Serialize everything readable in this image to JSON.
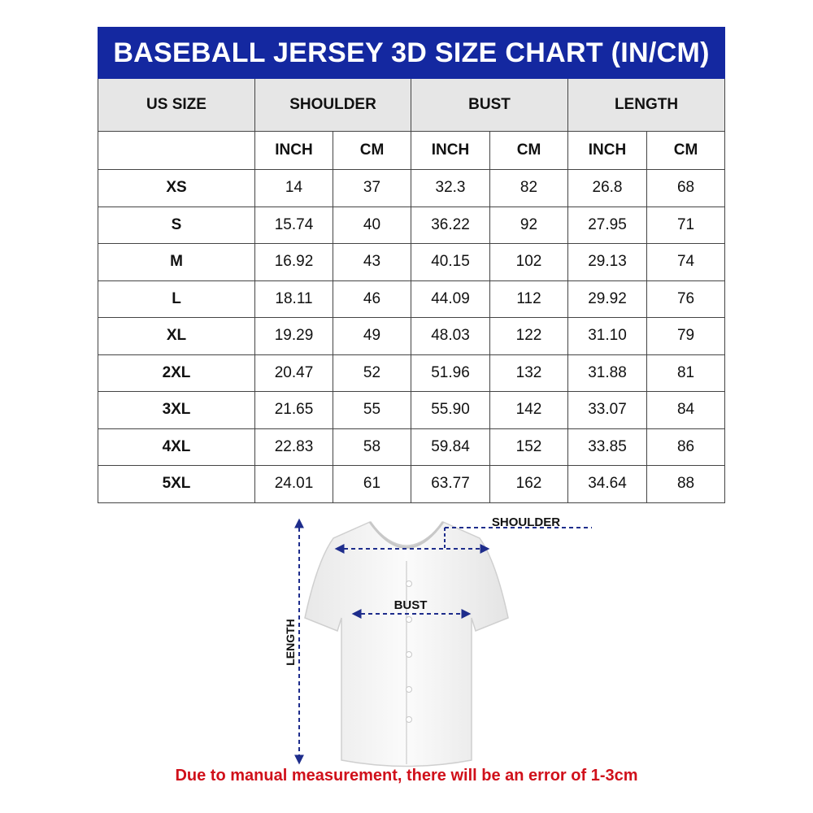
{
  "title": "BASEBALL JERSEY 3D SIZE CHART (IN/CM)",
  "headers": {
    "size": "US SIZE",
    "shoulder": "SHOULDER",
    "bust": "BUST",
    "length": "LENGTH"
  },
  "units": [
    "INCH",
    "CM",
    "INCH",
    "CM",
    "INCH",
    "CM"
  ],
  "rows": [
    [
      "XS",
      "14",
      "37",
      "32.3",
      "82",
      "26.8",
      "68"
    ],
    [
      "S",
      "15.74",
      "40",
      "36.22",
      "92",
      "27.95",
      "71"
    ],
    [
      "M",
      "16.92",
      "43",
      "40.15",
      "102",
      "29.13",
      "74"
    ],
    [
      "L",
      "18.11",
      "46",
      "44.09",
      "112",
      "29.92",
      "76"
    ],
    [
      "XL",
      "19.29",
      "49",
      "48.03",
      "122",
      "31.10",
      "79"
    ],
    [
      "2XL",
      "20.47",
      "52",
      "51.96",
      "132",
      "31.88",
      "81"
    ],
    [
      "3XL",
      "21.65",
      "55",
      "55.90",
      "142",
      "33.07",
      "84"
    ],
    [
      "4XL",
      "22.83",
      "58",
      "59.84",
      "152",
      "33.85",
      "86"
    ],
    [
      "5XL",
      "24.01",
      "61",
      "63.77",
      "162",
      "34.64",
      "88"
    ]
  ],
  "diagram": {
    "shoulder_label": "SHOULDER",
    "bust_label": "BUST",
    "length_label": "LENGTH"
  },
  "note": "Due to manual measurement, there will be an error of 1-3cm",
  "colors": {
    "title_bg": "#1428a0",
    "header_bg": "#e6e6e6",
    "arrow": "#1e2d8c",
    "note": "#d0101a"
  }
}
